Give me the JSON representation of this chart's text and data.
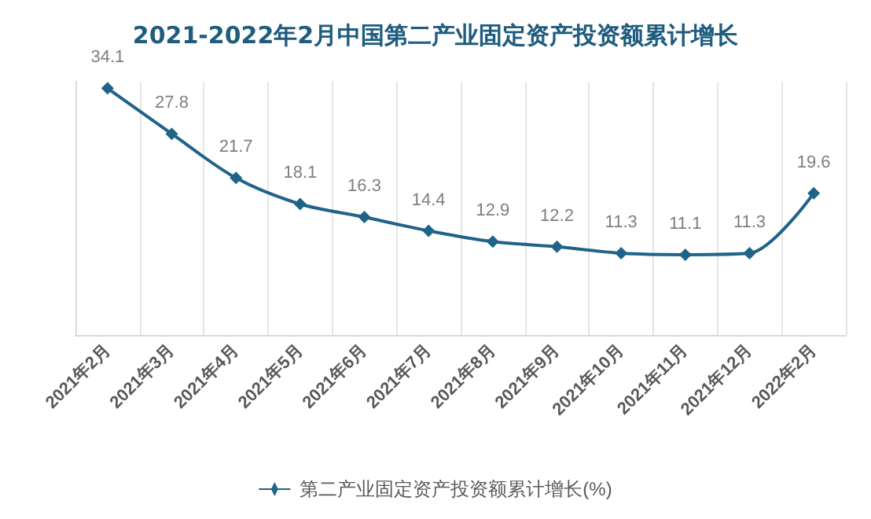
{
  "chart_data": {
    "type": "line",
    "title": "2021-2022年2月中国第二产业固定资产投资额累计增长",
    "categories": [
      "2021年2月",
      "2021年3月",
      "2021年4月",
      "2021年5月",
      "2021年6月",
      "2021年7月",
      "2021年8月",
      "2021年9月",
      "2021年10月",
      "2021年11月",
      "2021年12月",
      "2022年2月"
    ],
    "series": [
      {
        "name": "第二产业固定资产投资额累计增长(%)",
        "color": "#1f6389",
        "values": [
          34.1,
          27.8,
          21.7,
          18.1,
          16.3,
          14.4,
          12.9,
          12.2,
          11.3,
          11.1,
          11.3,
          19.6
        ]
      }
    ],
    "data_labels": true,
    "marker": "diamond",
    "line_style": "solid",
    "legend": "bottom",
    "grid": "x",
    "tick_labels": "x"
  }
}
